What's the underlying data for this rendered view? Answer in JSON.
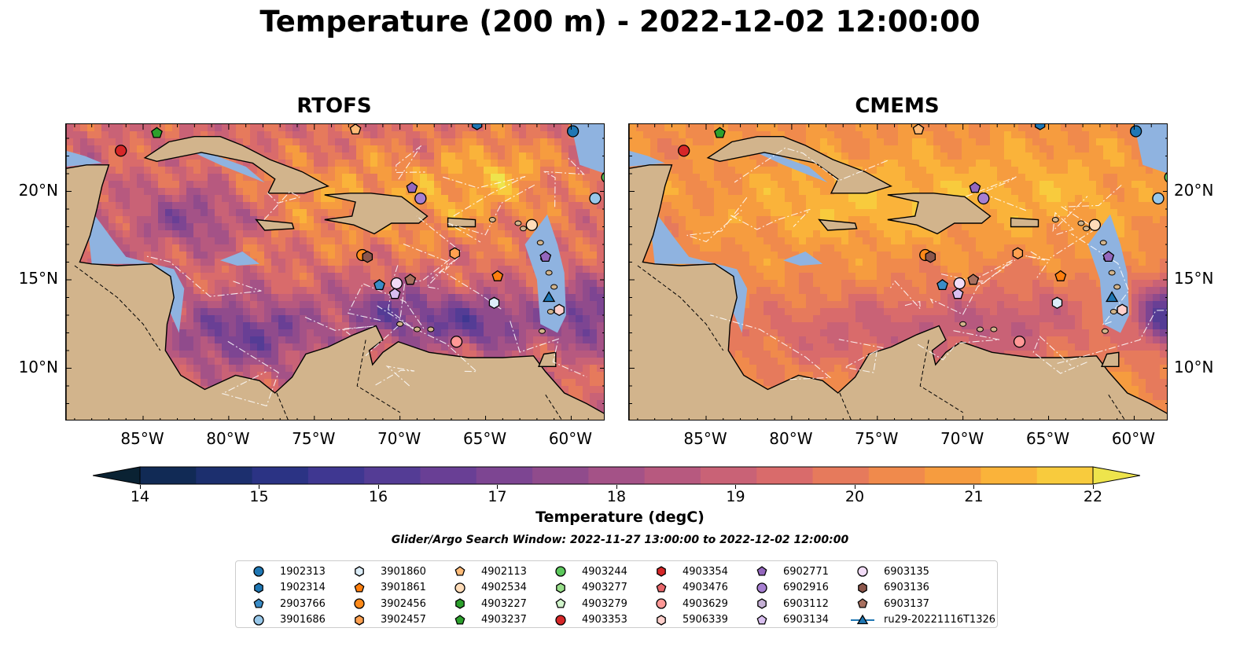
{
  "title": "Temperature (200 m) - 2022-12-02 12:00:00",
  "panels": [
    {
      "name": "RTOFS"
    },
    {
      "name": "CMEMS"
    }
  ],
  "axes": {
    "lon_ticks": [
      "85°W",
      "80°W",
      "75°W",
      "70°W",
      "65°W",
      "60°W"
    ],
    "lat_ticks": [
      "20°N",
      "15°N",
      "10°N"
    ],
    "lon_range": [
      -89.5,
      -58.0
    ],
    "lat_range": [
      7.0,
      23.8
    ]
  },
  "colorbar": {
    "label": "Temperature (degC)",
    "min": 14,
    "max": 22,
    "step": 0.5,
    "ticks": [
      "14",
      "15",
      "16",
      "17",
      "18",
      "19",
      "20",
      "21",
      "22"
    ],
    "colors": [
      "#0a2233",
      "#112a55",
      "#1c2f6e",
      "#2b3384",
      "#3f3791",
      "#543c95",
      "#693f95",
      "#7d4592",
      "#904b8c",
      "#a45287",
      "#b7597f",
      "#c96276",
      "#d96b6b",
      "#e67a5c",
      "#f08a4c",
      "#f69c3f",
      "#fab33a",
      "#f8cb3d",
      "#eee44c"
    ]
  },
  "search_window": "Glider/Argo Search Window: 2022-11-27 13:00:00 to 2022-12-02 12:00:00",
  "legend": [
    {
      "label": "1902313",
      "marker": "circle",
      "color": "#1f77b4"
    },
    {
      "label": "1902314",
      "marker": "hexagon",
      "color": "#1f77b4"
    },
    {
      "label": "2903766",
      "marker": "pentagon",
      "color": "#3a8cc7"
    },
    {
      "label": "3901686",
      "marker": "circle",
      "color": "#98c8ea"
    },
    {
      "label": "3901860",
      "marker": "hexagon",
      "color": "#dcedf8"
    },
    {
      "label": "3901861",
      "marker": "pentagon",
      "color": "#ff7f0e"
    },
    {
      "label": "3902456",
      "marker": "circle",
      "color": "#ff8a1a"
    },
    {
      "label": "3902457",
      "marker": "hexagon",
      "color": "#ffa050"
    },
    {
      "label": "4902113",
      "marker": "pentagon",
      "color": "#ffbb78"
    },
    {
      "label": "4902534",
      "marker": "circle",
      "color": "#ffdcb8"
    },
    {
      "label": "4903227",
      "marker": "hexagon",
      "color": "#2ca02c"
    },
    {
      "label": "4903237",
      "marker": "pentagon",
      "color": "#2ca02c"
    },
    {
      "label": "4903244",
      "marker": "circle",
      "color": "#5cc85c"
    },
    {
      "label": "4903277",
      "marker": "hexagon",
      "color": "#98df8a"
    },
    {
      "label": "4903279",
      "marker": "pentagon",
      "color": "#d2f5cc"
    },
    {
      "label": "4903353",
      "marker": "circle",
      "color": "#d62728"
    },
    {
      "label": "4903354",
      "marker": "hexagon",
      "color": "#d62728"
    },
    {
      "label": "4903476",
      "marker": "pentagon",
      "color": "#e8666a"
    },
    {
      "label": "4903629",
      "marker": "circle",
      "color": "#ff9896"
    },
    {
      "label": "5906339",
      "marker": "hexagon",
      "color": "#ffd0cc"
    },
    {
      "label": "6902771",
      "marker": "pentagon",
      "color": "#9467bd"
    },
    {
      "label": "6902916",
      "marker": "circle",
      "color": "#a77fd1"
    },
    {
      "label": "6903112",
      "marker": "hexagon",
      "color": "#c5b0d5"
    },
    {
      "label": "6903134",
      "marker": "pentagon",
      "color": "#d9bff0"
    },
    {
      "label": "6903135",
      "marker": "circle",
      "color": "#f2dcf7"
    },
    {
      "label": "6903136",
      "marker": "hexagon",
      "color": "#8c564b"
    },
    {
      "label": "6903137",
      "marker": "pentagon",
      "color": "#a8705f"
    },
    {
      "label": "ru29-20221116T1326",
      "marker": "triangle-line",
      "color": "#1f77b4"
    }
  ],
  "colors": {
    "land": "#d2b48c",
    "shelf": "#8fb3e0",
    "gridline": "#ffffff"
  },
  "floats": [
    {
      "id": "4903353",
      "lon": -86.3,
      "lat": 22.3
    },
    {
      "id": "4903237",
      "lon": -84.2,
      "lat": 23.3
    },
    {
      "id": "4902113",
      "lon": -72.6,
      "lat": 23.5
    },
    {
      "id": "1902314",
      "lon": -65.5,
      "lat": 23.8
    },
    {
      "id": "1902313",
      "lon": -59.9,
      "lat": 23.4
    },
    {
      "id": "4903244",
      "lon": -57.9,
      "lat": 20.8
    },
    {
      "id": "6902771",
      "lon": -69.3,
      "lat": 20.2
    },
    {
      "id": "6902916",
      "lon": -68.8,
      "lat": 19.6
    },
    {
      "id": "3901686",
      "lon": -58.6,
      "lat": 19.6
    },
    {
      "id": "4902534",
      "lon": -62.3,
      "lat": 18.1
    },
    {
      "id": "3902456",
      "lon": -72.2,
      "lat": 16.4
    },
    {
      "id": "6903136",
      "lon": -71.9,
      "lat": 16.3
    },
    {
      "id": "3902457",
      "lon": -66.8,
      "lat": 16.5
    },
    {
      "id": "6902771",
      "lon": -61.5,
      "lat": 16.3
    },
    {
      "id": "3901861",
      "lon": -64.3,
      "lat": 15.2
    },
    {
      "id": "6903137",
      "lon": -69.4,
      "lat": 15.0
    },
    {
      "id": "6903135",
      "lon": -70.2,
      "lat": 14.8
    },
    {
      "id": "2903766",
      "lon": -71.2,
      "lat": 14.7
    },
    {
      "id": "6903134",
      "lon": -70.3,
      "lat": 14.2
    },
    {
      "id": "3901860",
      "lon": -64.5,
      "lat": 13.7
    },
    {
      "id": "5906339",
      "lon": -60.7,
      "lat": 13.3
    },
    {
      "id": "4903629",
      "lon": -66.7,
      "lat": 11.5
    }
  ],
  "glider": {
    "id": "ru29-20221116T1326",
    "lon": -61.3,
    "lat": 14.0
  }
}
